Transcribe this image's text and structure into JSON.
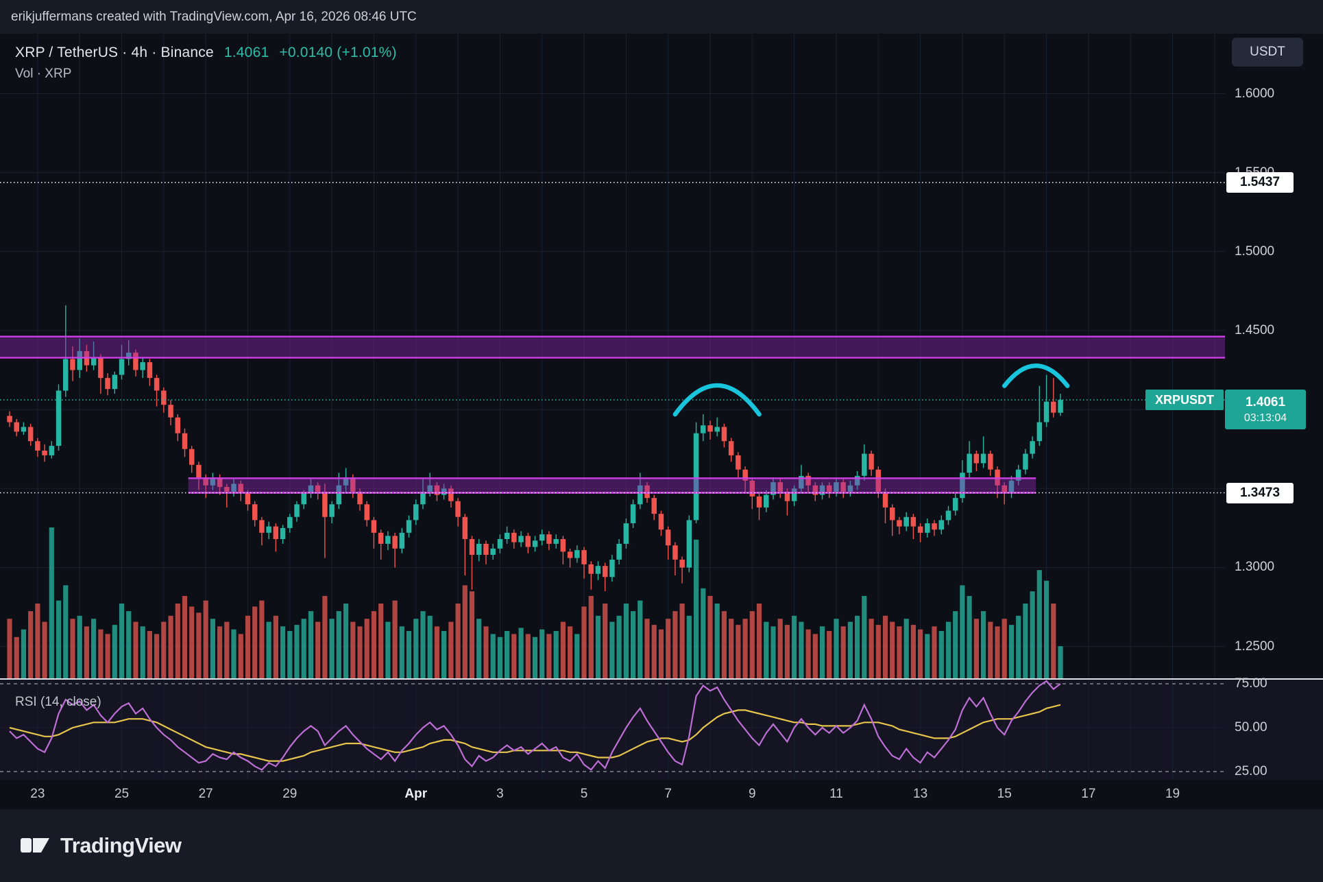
{
  "topbar": {
    "credit": "erikjuffermans created with TradingView.com, Apr 16, 2026 08:46 UTC"
  },
  "header": {
    "symbol_line": "XRP / TetherUS · 4h · Binance",
    "price": "1.4061",
    "change": "+0.0140 (+1.01%)",
    "indicator_line": "Vol · XRP"
  },
  "right_axis": {
    "currency_button": "USDT",
    "tags": {
      "upper": {
        "t": "1.5437",
        "v": 1.5437
      },
      "lower": {
        "t": "1.3473",
        "v": 1.3473
      },
      "last": {
        "symbol": "XRPUSDT",
        "t": "1.4061",
        "v": 1.4061,
        "countdown": "03:13:04"
      }
    }
  },
  "rsi_pane": {
    "label": "RSI (14, close)"
  },
  "footer": {
    "brand": "TradingView"
  },
  "colors": {
    "up": "#27b6a3",
    "down": "#f1544f",
    "vol_up": "rgba(39,172,154,0.8)",
    "vol_down": "rgba(224,84,80,0.78)",
    "zone_fill": "rgba(146,39,176,0.42)",
    "zone_border": "#cf3fe6",
    "arc": "#18c5dd",
    "rsi": "#bd6fd6",
    "rsi_ma": "#e6c54d",
    "accent": "#1fa595",
    "level_line": "#eef1f4"
  },
  "chart_data": {
    "type": "candlestick",
    "symbol": "XRPUSDT",
    "exchange": "Binance",
    "interval": "4h",
    "title": "XRP / TetherUS · 4h · Binance",
    "y_axis": {
      "pmax": 1.638,
      "pmin": 1.229,
      "grid": [
        1.6,
        1.55,
        1.5,
        1.45,
        1.4,
        1.35,
        1.3,
        1.25
      ],
      "ticks": [
        {
          "v": 1.6,
          "t": "1.6000"
        },
        {
          "v": 1.55,
          "t": "1.5500"
        },
        {
          "v": 1.5,
          "t": "1.5000"
        },
        {
          "v": 1.45,
          "t": "1.4500"
        },
        {
          "v": 1.3,
          "t": "1.3000"
        },
        {
          "v": 1.25,
          "t": "1.2500"
        }
      ]
    },
    "rsi_axis": [
      {
        "v": 75,
        "t": "75.00"
      },
      {
        "v": 50,
        "t": "50.00"
      },
      {
        "v": 25,
        "t": "25.00"
      }
    ],
    "x_axis": [
      {
        "t": "23",
        "i": 4
      },
      {
        "t": "25",
        "i": 16
      },
      {
        "t": "27",
        "i": 28
      },
      {
        "t": "29",
        "i": 40
      },
      {
        "t": "Apr",
        "i": 58,
        "m": true
      },
      {
        "t": "3",
        "i": 70
      },
      {
        "t": "5",
        "i": 82
      },
      {
        "t": "7",
        "i": 94
      },
      {
        "t": "9",
        "i": 106
      },
      {
        "t": "11",
        "i": 118
      },
      {
        "t": "13",
        "i": 130
      },
      {
        "t": "15",
        "i": 142
      },
      {
        "t": "17",
        "i": 154
      },
      {
        "t": "19",
        "i": 166
      }
    ],
    "levels": {
      "upper": 1.5437,
      "lower": 1.3473,
      "last": 1.4061
    },
    "zones": [
      {
        "top": 1.4462,
        "bottom": 1.4328,
        "full": true
      },
      {
        "top": 1.3565,
        "bottom": 1.3473,
        "i1": 26,
        "i2": 146
      }
    ],
    "arcs": [
      {
        "i1": 95,
        "i2": 107,
        "end_price": 1.397,
        "peak_price": 1.4335
      },
      {
        "i1": 142,
        "i2": 151,
        "end_price": 1.415,
        "peak_price": 1.4405
      }
    ],
    "candles": [
      [
        1.396,
        1.399,
        1.389,
        1.392
      ],
      [
        1.392,
        1.394,
        1.383,
        1.386
      ],
      [
        1.386,
        1.392,
        1.384,
        1.389
      ],
      [
        1.389,
        1.391,
        1.377,
        1.38
      ],
      [
        1.38,
        1.382,
        1.37,
        1.374
      ],
      [
        1.374,
        1.378,
        1.367,
        1.371
      ],
      [
        1.371,
        1.38,
        1.369,
        1.377
      ],
      [
        1.377,
        1.416,
        1.374,
        1.412
      ],
      [
        1.412,
        1.466,
        1.408,
        1.432
      ],
      [
        1.432,
        1.44,
        1.418,
        1.425
      ],
      [
        1.425,
        1.445,
        1.42,
        1.437
      ],
      [
        1.437,
        1.441,
        1.424,
        1.428
      ],
      [
        1.428,
        1.443,
        1.425,
        1.433
      ],
      [
        1.433,
        1.435,
        1.41,
        1.42
      ],
      [
        1.42,
        1.423,
        1.409,
        1.413
      ],
      [
        1.413,
        1.424,
        1.41,
        1.422
      ],
      [
        1.422,
        1.441,
        1.419,
        1.432
      ],
      [
        1.432,
        1.444,
        1.428,
        1.436
      ],
      [
        1.436,
        1.438,
        1.421,
        1.425
      ],
      [
        1.425,
        1.433,
        1.42,
        1.43
      ],
      [
        1.43,
        1.432,
        1.415,
        1.42
      ],
      [
        1.42,
        1.422,
        1.402,
        1.412
      ],
      [
        1.412,
        1.414,
        1.398,
        1.403
      ],
      [
        1.403,
        1.406,
        1.39,
        1.395
      ],
      [
        1.395,
        1.397,
        1.38,
        1.385
      ],
      [
        1.385,
        1.388,
        1.37,
        1.375
      ],
      [
        1.375,
        1.377,
        1.36,
        1.365
      ],
      [
        1.365,
        1.367,
        1.349,
        1.357
      ],
      [
        1.357,
        1.359,
        1.344,
        1.352
      ],
      [
        1.352,
        1.36,
        1.349,
        1.357
      ],
      [
        1.357,
        1.359,
        1.346,
        1.351
      ],
      [
        1.351,
        1.353,
        1.338,
        1.348
      ],
      [
        1.348,
        1.356,
        1.345,
        1.353
      ],
      [
        1.353,
        1.355,
        1.342,
        1.347
      ],
      [
        1.347,
        1.349,
        1.336,
        1.34
      ],
      [
        1.34,
        1.342,
        1.326,
        1.33
      ],
      [
        1.33,
        1.332,
        1.314,
        1.322
      ],
      [
        1.322,
        1.329,
        1.318,
        1.326
      ],
      [
        1.326,
        1.328,
        1.31,
        1.318
      ],
      [
        1.318,
        1.327,
        1.315,
        1.325
      ],
      [
        1.325,
        1.334,
        1.322,
        1.332
      ],
      [
        1.332,
        1.342,
        1.329,
        1.34
      ],
      [
        1.34,
        1.349,
        1.337,
        1.347
      ],
      [
        1.347,
        1.357,
        1.344,
        1.352
      ],
      [
        1.352,
        1.354,
        1.343,
        1.348
      ],
      [
        1.348,
        1.353,
        1.306,
        1.332
      ],
      [
        1.332,
        1.342,
        1.328,
        1.34
      ],
      [
        1.34,
        1.36,
        1.337,
        1.352
      ],
      [
        1.352,
        1.363,
        1.348,
        1.357
      ],
      [
        1.357,
        1.359,
        1.344,
        1.348
      ],
      [
        1.348,
        1.35,
        1.336,
        1.34
      ],
      [
        1.34,
        1.342,
        1.326,
        1.33
      ],
      [
        1.33,
        1.332,
        1.312,
        1.322
      ],
      [
        1.322,
        1.324,
        1.305,
        1.315
      ],
      [
        1.315,
        1.323,
        1.311,
        1.32
      ],
      [
        1.32,
        1.322,
        1.3,
        1.312
      ],
      [
        1.312,
        1.325,
        1.309,
        1.322
      ],
      [
        1.322,
        1.333,
        1.319,
        1.33
      ],
      [
        1.33,
        1.343,
        1.327,
        1.34
      ],
      [
        1.34,
        1.356,
        1.337,
        1.348
      ],
      [
        1.348,
        1.36,
        1.345,
        1.352
      ],
      [
        1.352,
        1.354,
        1.342,
        1.346
      ],
      [
        1.346,
        1.353,
        1.343,
        1.35
      ],
      [
        1.35,
        1.352,
        1.338,
        1.342
      ],
      [
        1.342,
        1.344,
        1.326,
        1.332
      ],
      [
        1.332,
        1.334,
        1.295,
        1.318
      ],
      [
        1.318,
        1.32,
        1.286,
        1.308
      ],
      [
        1.308,
        1.318,
        1.304,
        1.315
      ],
      [
        1.315,
        1.317,
        1.302,
        1.308
      ],
      [
        1.308,
        1.315,
        1.305,
        1.312
      ],
      [
        1.312,
        1.321,
        1.309,
        1.318
      ],
      [
        1.318,
        1.326,
        1.315,
        1.322
      ],
      [
        1.322,
        1.324,
        1.312,
        1.316
      ],
      [
        1.316,
        1.323,
        1.313,
        1.32
      ],
      [
        1.32,
        1.322,
        1.309,
        1.313
      ],
      [
        1.313,
        1.32,
        1.31,
        1.317
      ],
      [
        1.317,
        1.324,
        1.314,
        1.321
      ],
      [
        1.321,
        1.323,
        1.311,
        1.315
      ],
      [
        1.315,
        1.321,
        1.312,
        1.318
      ],
      [
        1.318,
        1.32,
        1.302,
        1.31
      ],
      [
        1.31,
        1.312,
        1.3,
        1.306
      ],
      [
        1.306,
        1.314,
        1.303,
        1.311
      ],
      [
        1.311,
        1.313,
        1.293,
        1.302
      ],
      [
        1.302,
        1.304,
        1.286,
        1.296
      ],
      [
        1.296,
        1.304,
        1.292,
        1.301
      ],
      [
        1.301,
        1.303,
        1.285,
        1.294
      ],
      [
        1.294,
        1.308,
        1.291,
        1.305
      ],
      [
        1.305,
        1.318,
        1.302,
        1.315
      ],
      [
        1.315,
        1.331,
        1.312,
        1.328
      ],
      [
        1.328,
        1.343,
        1.325,
        1.34
      ],
      [
        1.34,
        1.36,
        1.337,
        1.352
      ],
      [
        1.352,
        1.354,
        1.341,
        1.344
      ],
      [
        1.344,
        1.346,
        1.33,
        1.334
      ],
      [
        1.334,
        1.336,
        1.32,
        1.324
      ],
      [
        1.324,
        1.326,
        1.305,
        1.314
      ],
      [
        1.314,
        1.316,
        1.295,
        1.305
      ],
      [
        1.305,
        1.307,
        1.29,
        1.3
      ],
      [
        1.3,
        1.333,
        1.297,
        1.33
      ],
      [
        1.33,
        1.392,
        1.328,
        1.385
      ],
      [
        1.385,
        1.397,
        1.38,
        1.39
      ],
      [
        1.39,
        1.393,
        1.381,
        1.386
      ],
      [
        1.386,
        1.395,
        1.383,
        1.389
      ],
      [
        1.389,
        1.391,
        1.376,
        1.38
      ],
      [
        1.38,
        1.382,
        1.367,
        1.371
      ],
      [
        1.371,
        1.373,
        1.357,
        1.362
      ],
      [
        1.362,
        1.364,
        1.347,
        1.355
      ],
      [
        1.355,
        1.357,
        1.337,
        1.345
      ],
      [
        1.345,
        1.347,
        1.33,
        1.338
      ],
      [
        1.338,
        1.349,
        1.335,
        1.346
      ],
      [
        1.346,
        1.357,
        1.343,
        1.354
      ],
      [
        1.354,
        1.356,
        1.344,
        1.348
      ],
      [
        1.348,
        1.35,
        1.333,
        1.342
      ],
      [
        1.342,
        1.352,
        1.339,
        1.35
      ],
      [
        1.35,
        1.365,
        1.347,
        1.358
      ],
      [
        1.358,
        1.36,
        1.348,
        1.352
      ],
      [
        1.352,
        1.354,
        1.342,
        1.346
      ],
      [
        1.346,
        1.354,
        1.343,
        1.352
      ],
      [
        1.352,
        1.354,
        1.344,
        1.348
      ],
      [
        1.348,
        1.357,
        1.345,
        1.354
      ],
      [
        1.354,
        1.356,
        1.344,
        1.348
      ],
      [
        1.348,
        1.355,
        1.345,
        1.352
      ],
      [
        1.352,
        1.361,
        1.349,
        1.358
      ],
      [
        1.358,
        1.378,
        1.355,
        1.372
      ],
      [
        1.372,
        1.374,
        1.358,
        1.362
      ],
      [
        1.362,
        1.364,
        1.344,
        1.348
      ],
      [
        1.348,
        1.35,
        1.328,
        1.338
      ],
      [
        1.338,
        1.34,
        1.32,
        1.33
      ],
      [
        1.33,
        1.332,
        1.321,
        1.326
      ],
      [
        1.326,
        1.335,
        1.323,
        1.332
      ],
      [
        1.332,
        1.334,
        1.318,
        1.326
      ],
      [
        1.326,
        1.328,
        1.316,
        1.322
      ],
      [
        1.322,
        1.331,
        1.319,
        1.328
      ],
      [
        1.328,
        1.33,
        1.32,
        1.324
      ],
      [
        1.324,
        1.333,
        1.321,
        1.33
      ],
      [
        1.33,
        1.339,
        1.327,
        1.336
      ],
      [
        1.336,
        1.347,
        1.333,
        1.344
      ],
      [
        1.344,
        1.368,
        1.341,
        1.36
      ],
      [
        1.36,
        1.38,
        1.357,
        1.372
      ],
      [
        1.372,
        1.374,
        1.361,
        1.366
      ],
      [
        1.366,
        1.383,
        1.363,
        1.372
      ],
      [
        1.372,
        1.374,
        1.358,
        1.362
      ],
      [
        1.362,
        1.364,
        1.344,
        1.352
      ],
      [
        1.352,
        1.354,
        1.34,
        1.347
      ],
      [
        1.347,
        1.358,
        1.344,
        1.355
      ],
      [
        1.355,
        1.365,
        1.352,
        1.362
      ],
      [
        1.362,
        1.375,
        1.359,
        1.372
      ],
      [
        1.372,
        1.383,
        1.369,
        1.38
      ],
      [
        1.38,
        1.415,
        1.377,
        1.392
      ],
      [
        1.392,
        1.422,
        1.389,
        1.405
      ],
      [
        1.405,
        1.42,
        1.395,
        1.398
      ],
      [
        1.398,
        1.41,
        1.396,
        1.4061
      ]
    ],
    "volumes": [
      0.4,
      0.28,
      0.33,
      0.45,
      0.5,
      0.38,
      1.0,
      0.52,
      0.62,
      0.4,
      0.42,
      0.35,
      0.4,
      0.33,
      0.3,
      0.36,
      0.5,
      0.45,
      0.38,
      0.35,
      0.32,
      0.3,
      0.38,
      0.42,
      0.5,
      0.55,
      0.48,
      0.44,
      0.52,
      0.4,
      0.35,
      0.38,
      0.33,
      0.3,
      0.42,
      0.48,
      0.52,
      0.38,
      0.42,
      0.35,
      0.32,
      0.36,
      0.4,
      0.45,
      0.38,
      0.55,
      0.4,
      0.45,
      0.5,
      0.38,
      0.35,
      0.4,
      0.45,
      0.5,
      0.38,
      0.52,
      0.35,
      0.32,
      0.4,
      0.45,
      0.42,
      0.35,
      0.32,
      0.38,
      0.5,
      0.62,
      0.58,
      0.4,
      0.35,
      0.3,
      0.28,
      0.32,
      0.3,
      0.34,
      0.3,
      0.28,
      0.33,
      0.3,
      0.32,
      0.38,
      0.35,
      0.3,
      0.48,
      0.55,
      0.42,
      0.5,
      0.38,
      0.42,
      0.5,
      0.45,
      0.52,
      0.4,
      0.36,
      0.33,
      0.4,
      0.45,
      0.5,
      0.42,
      0.92,
      0.6,
      0.55,
      0.5,
      0.45,
      0.4,
      0.36,
      0.4,
      0.45,
      0.5,
      0.38,
      0.35,
      0.4,
      0.36,
      0.42,
      0.38,
      0.33,
      0.3,
      0.35,
      0.32,
      0.4,
      0.35,
      0.38,
      0.42,
      0.55,
      0.4,
      0.36,
      0.42,
      0.38,
      0.35,
      0.4,
      0.36,
      0.33,
      0.3,
      0.35,
      0.32,
      0.38,
      0.45,
      0.62,
      0.55,
      0.4,
      0.45,
      0.38,
      0.35,
      0.4,
      0.36,
      0.42,
      0.5,
      0.58,
      0.72,
      0.65,
      0.5,
      0.22
    ],
    "rsi": [
      48,
      44,
      46,
      42,
      38,
      36,
      44,
      58,
      66,
      63,
      65,
      60,
      63,
      57,
      53,
      58,
      62,
      64,
      58,
      61,
      55,
      50,
      46,
      43,
      39,
      36,
      33,
      30,
      31,
      35,
      33,
      32,
      36,
      33,
      31,
      28,
      26,
      30,
      28,
      33,
      39,
      44,
      48,
      51,
      48,
      40,
      44,
      48,
      51,
      46,
      42,
      38,
      35,
      32,
      36,
      31,
      37,
      41,
      46,
      50,
      53,
      49,
      51,
      46,
      40,
      32,
      28,
      34,
      31,
      33,
      37,
      40,
      37,
      39,
      35,
      38,
      41,
      37,
      39,
      33,
      31,
      35,
      29,
      26,
      31,
      27,
      36,
      43,
      50,
      56,
      61,
      54,
      48,
      42,
      36,
      31,
      29,
      45,
      68,
      74,
      71,
      73,
      66,
      60,
      54,
      49,
      44,
      40,
      47,
      52,
      47,
      42,
      50,
      55,
      50,
      46,
      50,
      47,
      51,
      47,
      50,
      54,
      63,
      55,
      45,
      39,
      34,
      32,
      38,
      33,
      30,
      36,
      33,
      38,
      43,
      49,
      60,
      67,
      62,
      67,
      58,
      50,
      46,
      54,
      59,
      65,
      70,
      74,
      78,
      72,
      75
    ],
    "rsi_ma": [
      50,
      49,
      48,
      47,
      46,
      45,
      45,
      46,
      48,
      50,
      51,
      52,
      53,
      53,
      53,
      53,
      54,
      55,
      55,
      55,
      54,
      53,
      51,
      49,
      47,
      45,
      43,
      41,
      39,
      38,
      37,
      36,
      35,
      35,
      34,
      33,
      32,
      31,
      31,
      31,
      32,
      33,
      34,
      36,
      37,
      38,
      39,
      40,
      41,
      41,
      41,
      40,
      39,
      38,
      37,
      36,
      36,
      37,
      38,
      39,
      41,
      42,
      43,
      43,
      42,
      41,
      39,
      38,
      37,
      36,
      36,
      36,
      37,
      37,
      37,
      37,
      37,
      37,
      37,
      37,
      36,
      36,
      35,
      34,
      33,
      33,
      33,
      34,
      36,
      38,
      40,
      42,
      43,
      44,
      44,
      43,
      42,
      43,
      46,
      50,
      53,
      56,
      58,
      59,
      60,
      60,
      59,
      58,
      57,
      56,
      55,
      54,
      53,
      53,
      52,
      52,
      51,
      51,
      51,
      51,
      51,
      52,
      53,
      53,
      53,
      52,
      51,
      49,
      48,
      47,
      46,
      45,
      44,
      44,
      44,
      45,
      47,
      49,
      51,
      53,
      54,
      55,
      55,
      55,
      56,
      57,
      58,
      59,
      61,
      62,
      63
    ]
  }
}
